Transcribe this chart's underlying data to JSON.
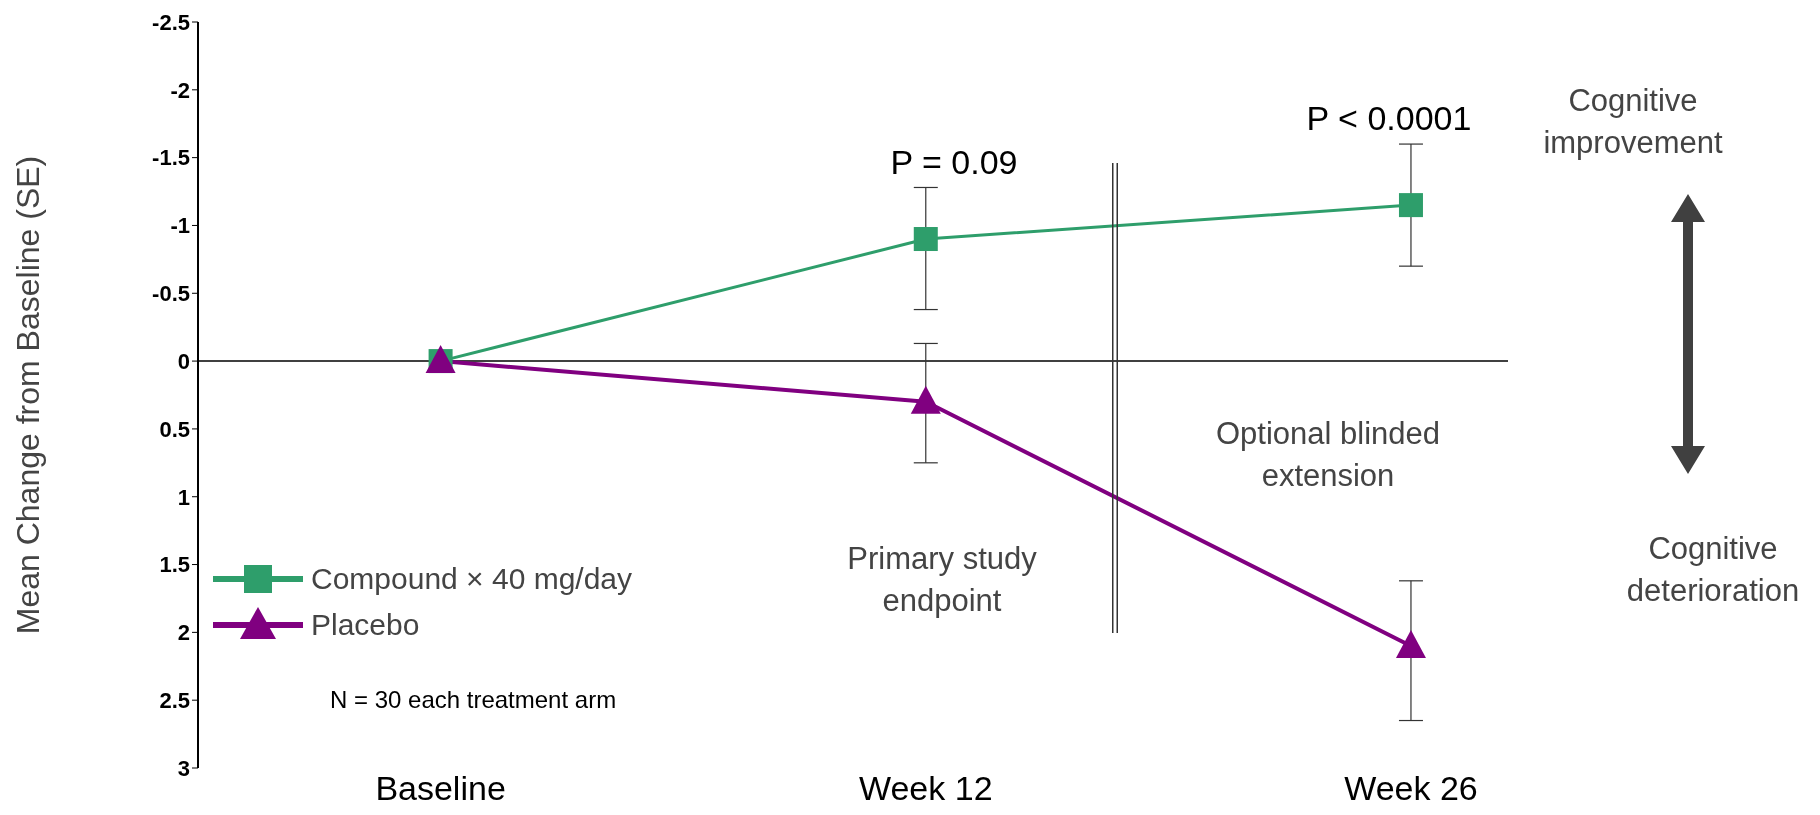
{
  "chart_data": {
    "type": "line",
    "ylabel": "Mean Change from Baseline (SE)",
    "categories": [
      "Baseline",
      "Week 12",
      "Week 26"
    ],
    "series": [
      {
        "name": "Compound × 40 mg/day",
        "color": "#2e9e6b",
        "marker": "square",
        "values": [
          0,
          -0.9,
          -1.15
        ],
        "errors": [
          null,
          [
            -1.28,
            -0.38
          ],
          [
            -1.6,
            -0.7
          ]
        ]
      },
      {
        "name": "Placebo",
        "color": "#800080",
        "marker": "triangle",
        "values": [
          0,
          0.3,
          2.1
        ],
        "errors": [
          null,
          [
            -0.13,
            0.75
          ],
          [
            1.62,
            2.65
          ]
        ]
      }
    ],
    "ylim": [
      3,
      -2.5
    ],
    "yticks": [
      -2.5,
      -2,
      -1.5,
      -1,
      -0.5,
      0,
      0.5,
      1,
      1.5,
      2,
      2.5,
      3
    ],
    "ref_lines": [
      {
        "axis": "y",
        "value": 0,
        "color": "#000000"
      }
    ],
    "annotations": [
      "P = 0.09",
      "P < 0.0001",
      "Cognitive improvement",
      "Cognitive deterioration",
      "Optional blinded extension",
      "Primary study endpoint",
      "N = 30 each treatment arm"
    ],
    "legend": "bottom left",
    "grid": false
  }
}
